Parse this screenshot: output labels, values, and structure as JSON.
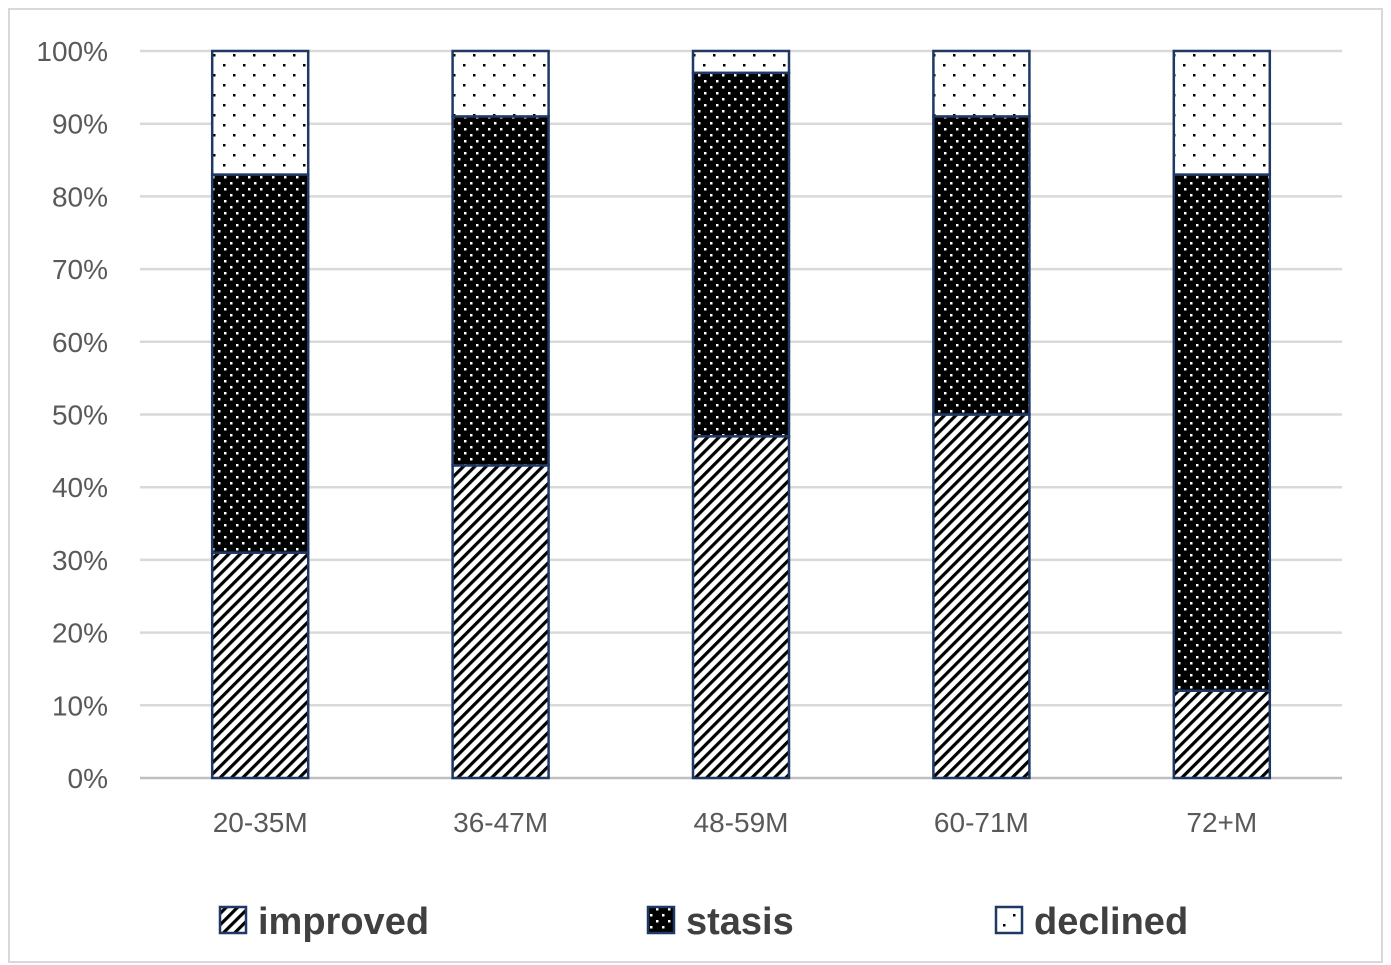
{
  "chart_data": {
    "type": "bar",
    "stacked": true,
    "percent": true,
    "title": "",
    "xlabel": "",
    "ylabel": "",
    "categories": [
      "20-35M",
      "36-47M",
      "48-59M",
      "60-71M",
      "72+M"
    ],
    "series": [
      {
        "name": "improved",
        "pattern": "diagonal-hatch",
        "values": [
          31,
          43,
          47,
          50,
          12
        ]
      },
      {
        "name": "stasis",
        "pattern": "black-dots",
        "values": [
          52,
          48,
          50,
          41,
          71
        ]
      },
      {
        "name": "declined",
        "pattern": "white-dots",
        "values": [
          17,
          9,
          3,
          9,
          17
        ]
      }
    ],
    "ylim": [
      0,
      100
    ],
    "yticks": [
      "0%",
      "10%",
      "20%",
      "30%",
      "40%",
      "50%",
      "60%",
      "70%",
      "80%",
      "90%",
      "100%"
    ],
    "grid": true,
    "legend_position": "bottom",
    "colors": {
      "outline": "#1f3864",
      "grid": "#d9d9d9",
      "axis": "#bfbfbf",
      "text": "#595959"
    }
  }
}
